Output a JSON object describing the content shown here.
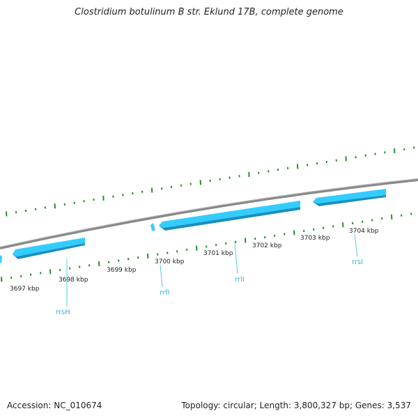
{
  "title": "Clostridium botulinum B str. Eklund 17B, complete genome",
  "footer": {
    "accession": "Accession: NC_010674",
    "summary": "Topology: circular; Length: 3,800,327 bp; Genes: 3,537"
  },
  "colors": {
    "backbone": "#888888",
    "gene": "#33ccff",
    "gene_dark": "#1a9ccc",
    "tick": "#2a8a2a",
    "label": "#33b5d9",
    "scale_text": "#222222"
  },
  "scale": {
    "unit": "kbp",
    "labels": [
      "3697 kbp",
      "3698 kbp",
      "3699 kbp",
      "3700 kbp",
      "3701 kbp",
      "3702 kbp",
      "3703 kbp",
      "3704 kbp"
    ]
  },
  "genes": [
    {
      "name": "rrsH"
    },
    {
      "name": "rrfI"
    },
    {
      "name": "rrlI"
    },
    {
      "name": "rrsI"
    }
  ]
}
